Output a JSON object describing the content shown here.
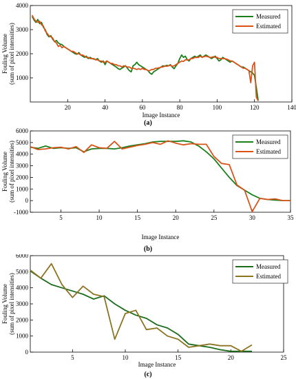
{
  "chart_data": [
    {
      "type": "line",
      "panel_label": "(a)",
      "xlabel": "Image Instance",
      "ylabel": "Fouling Volume",
      "ylabel2": "(sum of pixel intensities)",
      "xlim": [
        0,
        140
      ],
      "ylim": [
        0,
        4000
      ],
      "xticks": [
        20,
        40,
        60,
        80,
        100,
        120,
        140
      ],
      "yticks": [
        1000,
        2000,
        3000,
        4000
      ],
      "xtick_labels": [
        "20",
        "40",
        "60",
        "80",
        "100",
        "120",
        "140"
      ],
      "ytick_labels": [
        "1000",
        "2000",
        "3000",
        "4000"
      ],
      "legend_position": "top-right",
      "series": [
        {
          "name": "Measured",
          "color": "#1a7f1a",
          "x": [
            1,
            2,
            3,
            4,
            5,
            6,
            7,
            8,
            9,
            10,
            11,
            12,
            13,
            14,
            15,
            16,
            17,
            18,
            19,
            20,
            21,
            22,
            23,
            24,
            25,
            26,
            27,
            28,
            29,
            30,
            31,
            32,
            33,
            34,
            35,
            36,
            37,
            38,
            39,
            40,
            41,
            42,
            43,
            44,
            45,
            46,
            47,
            48,
            49,
            50,
            51,
            52,
            53,
            54,
            55,
            56,
            57,
            58,
            59,
            60,
            61,
            62,
            63,
            64,
            65,
            66,
            67,
            68,
            69,
            70,
            71,
            72,
            73,
            74,
            75,
            76,
            77,
            78,
            79,
            80,
            81,
            82,
            83,
            84,
            85,
            86,
            87,
            88,
            89,
            90,
            91,
            92,
            93,
            94,
            95,
            96,
            97,
            98,
            99,
            100,
            101,
            102,
            103,
            104,
            105,
            106,
            107,
            108,
            109,
            110,
            111,
            112,
            113,
            114,
            115,
            116,
            117,
            118,
            119,
            120,
            121,
            122
          ],
          "values": [
            3550,
            3400,
            3300,
            3420,
            3250,
            3300,
            3100,
            3000,
            2800,
            2700,
            2750,
            2600,
            2500,
            2550,
            2450,
            2400,
            2380,
            2300,
            2250,
            2200,
            2150,
            2100,
            2050,
            2000,
            1980,
            2050,
            1950,
            1900,
            1850,
            1900,
            1800,
            1850,
            1800,
            1780,
            1750,
            1800,
            1700,
            1650,
            1700,
            1550,
            1700,
            1650,
            1600,
            1550,
            1500,
            1450,
            1380,
            1350,
            1400,
            1450,
            1500,
            1400,
            1300,
            1250,
            1500,
            1550,
            1650,
            1550,
            1500,
            1450,
            1400,
            1350,
            1300,
            1200,
            1150,
            1250,
            1300,
            1350,
            1400,
            1450,
            1500,
            1480,
            1520,
            1500,
            1550,
            1450,
            1380,
            1500,
            1600,
            1800,
            1950,
            1850,
            1900,
            1750,
            1700,
            1800,
            1850,
            1900,
            1850,
            1900,
            1950,
            1850,
            1900,
            1950,
            1900,
            1850,
            1800,
            1850,
            1900,
            1800,
            1700,
            1750,
            1850,
            1800,
            1750,
            1700,
            1650,
            1700,
            1650,
            1600,
            1550,
            1500,
            1450,
            1450,
            1400,
            1350,
            1300,
            1250,
            1200,
            1100,
            600,
            50
          ]
        },
        {
          "name": "Estimated",
          "color": "#d95319",
          "x": [
            1,
            2,
            3,
            4,
            5,
            6,
            7,
            8,
            9,
            10,
            11,
            12,
            13,
            14,
            15,
            16,
            17,
            18,
            19,
            20,
            21,
            22,
            23,
            24,
            25,
            26,
            27,
            28,
            29,
            30,
            31,
            32,
            33,
            34,
            35,
            36,
            37,
            38,
            39,
            40,
            41,
            42,
            43,
            44,
            45,
            46,
            47,
            48,
            49,
            50,
            51,
            52,
            53,
            54,
            55,
            56,
            57,
            58,
            59,
            60,
            61,
            62,
            63,
            64,
            65,
            66,
            67,
            68,
            69,
            70,
            71,
            72,
            73,
            74,
            75,
            76,
            77,
            78,
            79,
            80,
            81,
            82,
            83,
            84,
            85,
            86,
            87,
            88,
            89,
            90,
            91,
            92,
            93,
            94,
            95,
            96,
            97,
            98,
            99,
            100,
            101,
            102,
            103,
            104,
            105,
            106,
            107,
            108,
            109,
            110,
            111,
            112,
            113,
            114,
            115,
            116,
            117,
            118,
            119,
            120,
            121,
            122
          ],
          "values": [
            3600,
            3450,
            3350,
            3300,
            3350,
            3200,
            3150,
            2950,
            2850,
            2750,
            2700,
            2650,
            2500,
            2450,
            2300,
            2350,
            2250,
            2300,
            2250,
            2200,
            2150,
            2100,
            2100,
            2050,
            2000,
            2000,
            1950,
            1950,
            1900,
            1850,
            1850,
            1800,
            1800,
            1800,
            1750,
            1750,
            1700,
            1700,
            1650,
            1650,
            1700,
            1650,
            1600,
            1600,
            1550,
            1550,
            1500,
            1500,
            1450,
            1500,
            1480,
            1450,
            1450,
            1400,
            1400,
            1380,
            1350,
            1380,
            1350,
            1400,
            1350,
            1350,
            1300,
            1300,
            1350,
            1350,
            1400,
            1400,
            1420,
            1450,
            1450,
            1500,
            1480,
            1500,
            1520,
            1480,
            1500,
            1550,
            1600,
            1650,
            1700,
            1680,
            1750,
            1750,
            1750,
            1800,
            1800,
            1850,
            1850,
            1850,
            1900,
            1850,
            1880,
            1900,
            1880,
            1850,
            1850,
            1880,
            1850,
            1850,
            1800,
            1800,
            1800,
            1800,
            1780,
            1750,
            1700,
            1700,
            1650,
            1600,
            1550,
            1500,
            1450,
            1400,
            1400,
            1350,
            1300,
            800,
            1500,
            1650,
            200,
            50
          ]
        }
      ]
    },
    {
      "type": "line",
      "panel_label": "(b)",
      "xlabel": "Image Instance",
      "ylabel": "Fouling Volume",
      "ylabel2": "(sum of pixel intensities)",
      "xlim": [
        1,
        35
      ],
      "ylim": [
        -1000,
        6000
      ],
      "xticks": [
        5,
        10,
        15,
        20,
        25,
        30,
        35
      ],
      "yticks": [
        -1000,
        0,
        1000,
        2000,
        3000,
        4000,
        5000,
        6000
      ],
      "xtick_labels": [
        "5",
        "10",
        "15",
        "20",
        "25",
        "30",
        "35"
      ],
      "ytick_labels": [
        "-1000",
        "0",
        "1000",
        "2000",
        "3000",
        "4000",
        "5000",
        "6000"
      ],
      "legend_position": "top-right",
      "series": [
        {
          "name": "Measured",
          "color": "#1a7f1a",
          "x": [
            1,
            2,
            3,
            4,
            5,
            6,
            7,
            8,
            9,
            10,
            11,
            12,
            13,
            14,
            15,
            16,
            17,
            18,
            19,
            20,
            21,
            22,
            23,
            24,
            25,
            26,
            27,
            28,
            29,
            30,
            31,
            32,
            33,
            34,
            35
          ],
          "values": [
            4600,
            4500,
            4700,
            4500,
            4550,
            4500,
            4550,
            4200,
            4450,
            4500,
            4500,
            4450,
            4550,
            4700,
            4800,
            4900,
            5050,
            5100,
            5100,
            5100,
            5150,
            5050,
            4700,
            4200,
            3600,
            2800,
            2000,
            1300,
            900,
            500,
            200,
            100,
            50,
            0,
            0
          ]
        },
        {
          "name": "Estimated",
          "color": "#d95319",
          "x": [
            1,
            2,
            3,
            4,
            5,
            6,
            7,
            8,
            9,
            10,
            11,
            12,
            13,
            14,
            15,
            16,
            17,
            18,
            19,
            20,
            21,
            22,
            23,
            24,
            25,
            26,
            27,
            28,
            29,
            30,
            31,
            32,
            33,
            34,
            35
          ],
          "values": [
            4650,
            4400,
            4450,
            4550,
            4600,
            4450,
            4650,
            4150,
            4800,
            4550,
            4500,
            5100,
            4450,
            4600,
            4750,
            4850,
            5000,
            4850,
            5150,
            4950,
            4800,
            4900,
            4850,
            4850,
            3800,
            3200,
            3100,
            1350,
            900,
            -950,
            200,
            100,
            150,
            0,
            0
          ]
        }
      ]
    },
    {
      "type": "line",
      "panel_label": "(c)",
      "xlabel": "Image Instance",
      "ylabel": "Fouling Volume",
      "ylabel2": "(sum of pixel intensities)",
      "xlim": [
        1,
        25
      ],
      "ylim": [
        0,
        6000
      ],
      "xticks": [
        5,
        10,
        15,
        20,
        25
      ],
      "yticks": [
        0,
        1000,
        2000,
        3000,
        4000,
        5000,
        6000
      ],
      "xtick_labels": [
        "5",
        "10",
        "15",
        "20",
        "25"
      ],
      "ytick_labels": [
        "0",
        "1000",
        "2000",
        "3000",
        "4000",
        "5000",
        "6000"
      ],
      "legend_position": "top-right",
      "series": [
        {
          "name": "Measured",
          "color": "#1a6b1a",
          "x": [
            1,
            2,
            3,
            4,
            5,
            6,
            7,
            8,
            9,
            10,
            11,
            12,
            13,
            14,
            15,
            16,
            17,
            18,
            19,
            20,
            21,
            22
          ],
          "values": [
            5050,
            4600,
            4200,
            4000,
            3800,
            3600,
            3300,
            3500,
            3000,
            2600,
            2300,
            2100,
            1700,
            1500,
            1100,
            500,
            400,
            300,
            150,
            50,
            50,
            50
          ]
        },
        {
          "name": "Estimated",
          "color": "#8b7320",
          "x": [
            1,
            2,
            3,
            4,
            5,
            6,
            7,
            8,
            9,
            10,
            11,
            12,
            13,
            14,
            15,
            16,
            17,
            18,
            19,
            20,
            21,
            22
          ],
          "values": [
            5100,
            4600,
            5500,
            4200,
            3400,
            4100,
            3600,
            3450,
            800,
            2400,
            2600,
            1400,
            1500,
            1000,
            800,
            300,
            400,
            500,
            400,
            400,
            50,
            450
          ]
        }
      ]
    }
  ]
}
